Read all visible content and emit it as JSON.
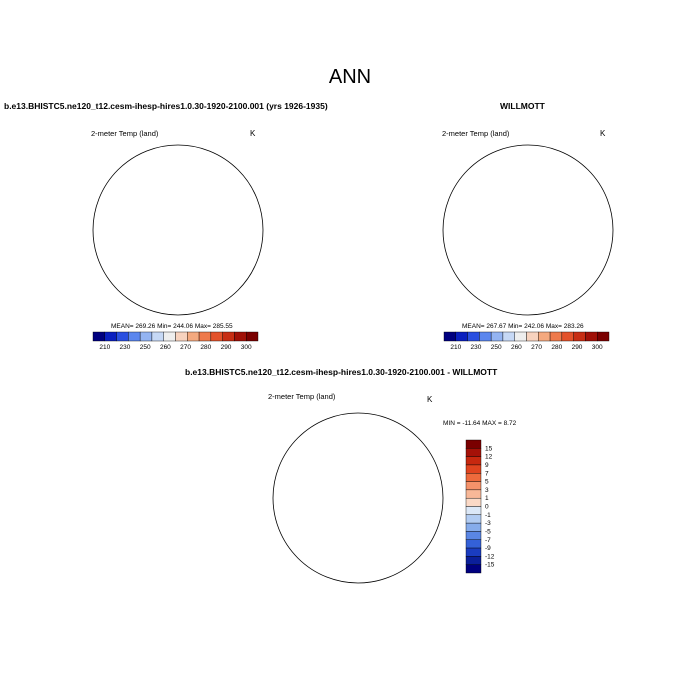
{
  "page_title": "ANN",
  "panels": [
    {
      "case_title": "b.e13.BHISTC5.ne120_t12.cesm-ihesp-hires1.0.30-1920-2100.001 (yrs 1926-1935)",
      "variable": "2-meter Temp (land)",
      "units": "K",
      "stats": "MEAN= 269.26  Min= 244.06  Max= 285.55",
      "colorbar": {
        "labels": [
          "210",
          "230",
          "250",
          "260",
          "270",
          "280",
          "290",
          "300"
        ],
        "colors": [
          "#00007f",
          "#0a1fbf",
          "#2a4fe0",
          "#5b86ee",
          "#94b4f2",
          "#c6d8f5",
          "#eeeeee",
          "#f7d2be",
          "#f4a97f",
          "#ee7a4c",
          "#e3522b",
          "#c72e14",
          "#a01007",
          "#7a0000"
        ]
      }
    },
    {
      "case_title": "WILLMOTT",
      "variable": "2-meter Temp (land)",
      "units": "K",
      "stats": "MEAN= 267.67  Min= 242.06  Max= 283.26",
      "colorbar": {
        "labels": [
          "210",
          "230",
          "250",
          "260",
          "270",
          "280",
          "290",
          "300"
        ],
        "colors": [
          "#00007f",
          "#0a1fbf",
          "#2a4fe0",
          "#5b86ee",
          "#94b4f2",
          "#c6d8f5",
          "#eeeeee",
          "#f7d2be",
          "#f4a97f",
          "#ee7a4c",
          "#e3522b",
          "#c72e14",
          "#a01007",
          "#7a0000"
        ]
      }
    },
    {
      "case_title": "b.e13.BHISTC5.ne120_t12.cesm-ihesp-hires1.0.30-1920-2100.001 - WILLMOTT",
      "variable": "2-meter Temp (land)",
      "units": "K",
      "stats": "MIN = -11.64 MAX =   8.72",
      "colorbar": {
        "labels": [
          "15",
          "12",
          "9",
          "7",
          "5",
          "3",
          "1",
          "0",
          "-1",
          "-3",
          "-5",
          "-7",
          "-9",
          "-12",
          "-15"
        ],
        "colors": [
          "#7a0000",
          "#a51108",
          "#c7280f",
          "#e0441f",
          "#ee6a3c",
          "#f5926a",
          "#f8b898",
          "#fbd9c6",
          "#dce8f7",
          "#b2ccf2",
          "#86aceb",
          "#5a86e4",
          "#3461d8",
          "#1a3cc0",
          "#0b1f9a",
          "#00007f"
        ]
      }
    }
  ]
}
